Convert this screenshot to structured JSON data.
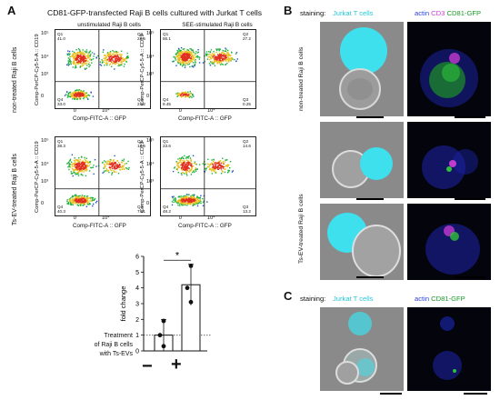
{
  "panel_a": {
    "letter": "A",
    "title": "CD81-GFP-transfected Raji B cells cultured with Jurkat T cells",
    "col_headers": [
      "unstimulated Raji B cells",
      "SEE-stimulated Raji B cells"
    ],
    "row_labels": [
      "non-treated Raji B cells",
      "Ts-EV-treated Raji B cells"
    ],
    "y_axis_label": "Comp-PerCP-Cy5-5-A :: CD19",
    "x_axis_label": "Comp-FITC-A :: GFP",
    "x_ticks": [
      "0",
      "10⁴"
    ],
    "y_ticks": [
      "10⁵",
      "10⁴",
      "10³",
      "0"
    ],
    "plots": [
      {
        "q1": "Q1",
        "q1v": "41.0",
        "q2": "Q2",
        "q2v": "23.5",
        "q3": "Q3",
        "q3v": "2.52",
        "q4": "Q4",
        "q4v": "33.0"
      },
      {
        "q1": "Q1",
        "q1v": "56.1",
        "q2": "Q2",
        "q2v": "27.2",
        "q3": "Q3",
        "q3v": "0.25",
        "q4": "Q4",
        "q4v": "9.45"
      },
      {
        "q1": "Q1",
        "q1v": "38.3",
        "q2": "Q2",
        "q2v": "13.5",
        "q3": "Q3",
        "q3v": "7.81",
        "q4": "Q4",
        "q4v": "40.3"
      },
      {
        "q1": "Q1",
        "q1v": "23.6",
        "q2": "Q2",
        "q2v": "14.6",
        "q3": "Q3",
        "q3v": "13.2",
        "q4": "Q4",
        "q4v": "48.2"
      }
    ]
  },
  "bar_chart": {
    "star": "*",
    "ylabel": "fold change",
    "treatment_label_lines": [
      "Treatment",
      "of Raji B cells",
      "with Ts-EVs"
    ],
    "categories": [
      "−",
      "+"
    ]
  },
  "chart_data": {
    "type": "bar",
    "categories": [
      "−",
      "+"
    ],
    "values": [
      1.0,
      4.2
    ],
    "error": [
      1.0,
      1.3
    ],
    "points": [
      [
        0.3,
        1.0,
        1.9
      ],
      [
        3.1,
        4.0,
        5.4
      ]
    ],
    "ylabel": "fold change",
    "ylim": [
      0,
      6
    ],
    "yticks": [
      "0",
      "1",
      "2",
      "3",
      "4",
      "5",
      "6"
    ],
    "reference_line": 1,
    "significance": "*"
  },
  "panel_b": {
    "letter": "B",
    "staining_label": "staining:",
    "left_header": "Jurkat T cells",
    "right_header_parts": [
      "actin",
      "CD3",
      "CD81-GFP"
    ],
    "row_labels": [
      "non-treated Raji B cells",
      "Ts-EV-treated Raji B cells"
    ]
  },
  "panel_c": {
    "letter": "C",
    "staining_label": "staining:",
    "left_header": "Jurkat T cells",
    "right_header_parts": [
      "actin",
      "CD81-GFP"
    ]
  },
  "colors": {
    "cyan": "#26c6d8",
    "actin_blue": "#2a3fd6",
    "cd3_magenta": "#d23ad6",
    "gfp_green": "#1a9a2a"
  }
}
